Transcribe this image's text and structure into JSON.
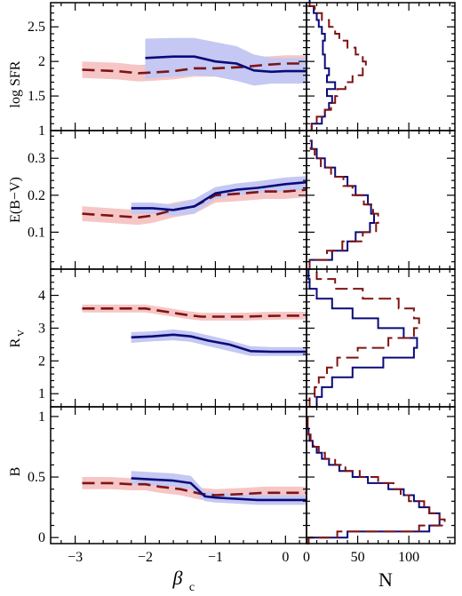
{
  "colors": {
    "red_line": "#7f1313",
    "red_band": "#f6c6c6",
    "blue_line": "#0a0a7a",
    "blue_band": "#c4c8f2",
    "frame": "#000000"
  },
  "chart_data": [
    {
      "type": "line",
      "panel": "SFR",
      "ylabel": "log SFR",
      "xlim": [
        -3.35,
        0.3
      ],
      "ylim": [
        1.0,
        2.85
      ],
      "yticks": [
        1,
        1.5,
        2,
        2.5
      ],
      "xticks": [
        -3,
        -2,
        -1,
        0
      ],
      "series": [
        {
          "color": "red",
          "style": "dashed",
          "x": [
            -2.9,
            -2.4,
            -2.1,
            -1.9,
            -1.6,
            -1.3,
            -1.0,
            -0.6,
            -0.3,
            0.0,
            0.3
          ],
          "y": [
            1.88,
            1.86,
            1.83,
            1.84,
            1.86,
            1.9,
            1.9,
            1.92,
            1.95,
            1.97,
            1.97
          ],
          "band": 0.12
        },
        {
          "color": "blue",
          "style": "solid",
          "x": [
            -2.0,
            -1.6,
            -1.3,
            -1.0,
            -0.7,
            -0.45,
            -0.2,
            0.0,
            0.3
          ],
          "y": [
            2.05,
            2.07,
            2.07,
            2.0,
            1.97,
            1.87,
            1.85,
            1.86,
            1.86
          ],
          "band_lo": [
            1.75,
            1.78,
            1.8,
            1.78,
            1.72,
            1.65,
            1.68,
            1.68,
            1.68
          ],
          "band_hi": [
            2.33,
            2.34,
            2.34,
            2.28,
            2.22,
            2.1,
            2.05,
            2.05,
            2.05
          ]
        }
      ]
    },
    {
      "type": "line",
      "panel": "EBV",
      "ylabel": "E(B−V)",
      "xlim": [
        -3.35,
        0.3
      ],
      "ylim": [
        0.0,
        0.375
      ],
      "yticks": [
        0.1,
        0.2,
        0.3
      ],
      "xticks": [
        -3,
        -2,
        -1,
        0
      ],
      "series": [
        {
          "color": "red",
          "style": "dashed",
          "x": [
            -2.9,
            -2.5,
            -2.1,
            -1.9,
            -1.6,
            -1.3,
            -1.0,
            -0.6,
            -0.3,
            0.0,
            0.3
          ],
          "y": [
            0.15,
            0.145,
            0.14,
            0.145,
            0.16,
            0.17,
            0.2,
            0.205,
            0.21,
            0.21,
            0.215
          ],
          "band": 0.02
        },
        {
          "color": "blue",
          "style": "solid",
          "x": [
            -2.2,
            -1.9,
            -1.6,
            -1.3,
            -1.0,
            -0.7,
            -0.4,
            0.0,
            0.3
          ],
          "y": [
            0.165,
            0.165,
            0.16,
            0.17,
            0.205,
            0.215,
            0.22,
            0.23,
            0.235
          ],
          "band_lo": [
            0.15,
            0.15,
            0.145,
            0.15,
            0.19,
            0.2,
            0.205,
            0.21,
            0.215
          ],
          "band_hi": [
            0.18,
            0.18,
            0.175,
            0.19,
            0.222,
            0.232,
            0.238,
            0.248,
            0.252
          ]
        }
      ]
    },
    {
      "type": "line",
      "panel": "RV",
      "ylabel": "R",
      "ylabel_sub": "V",
      "xlim": [
        -3.35,
        0.3
      ],
      "ylim": [
        0.6,
        4.8
      ],
      "yticks": [
        1,
        2,
        3,
        4
      ],
      "xticks": [
        -3,
        -2,
        -1,
        0
      ],
      "series": [
        {
          "color": "red",
          "style": "dashed",
          "x": [
            -2.9,
            -2.5,
            -2.2,
            -2.0,
            -1.7,
            -1.4,
            -1.2,
            -0.9,
            -0.6,
            -0.3,
            0.0,
            0.3
          ],
          "y": [
            3.6,
            3.6,
            3.6,
            3.6,
            3.5,
            3.4,
            3.35,
            3.35,
            3.35,
            3.37,
            3.38,
            3.38
          ],
          "band": 0.12
        },
        {
          "color": "blue",
          "style": "solid",
          "x": [
            -2.2,
            -1.9,
            -1.6,
            -1.35,
            -1.1,
            -0.8,
            -0.5,
            -0.2,
            0.0,
            0.3
          ],
          "y": [
            2.72,
            2.75,
            2.8,
            2.75,
            2.62,
            2.5,
            2.3,
            2.28,
            2.28,
            2.28
          ],
          "band_lo": [
            2.55,
            2.6,
            2.63,
            2.58,
            2.45,
            2.3,
            2.15,
            2.15,
            2.15,
            2.15
          ],
          "band_hi": [
            2.88,
            2.9,
            2.96,
            2.9,
            2.78,
            2.63,
            2.45,
            2.42,
            2.42,
            2.42
          ]
        }
      ]
    },
    {
      "type": "line",
      "panel": "B",
      "ylabel": "B",
      "xlim": [
        -3.35,
        0.3
      ],
      "ylim": [
        -0.05,
        1.08
      ],
      "yticks": [
        0,
        0.5,
        1
      ],
      "xticks": [
        -3,
        -2,
        -1,
        0
      ],
      "xticklabels": [
        "−3",
        "−2",
        "−1",
        "0"
      ],
      "xlabel": "β",
      "xlabel_sub": "c",
      "series": [
        {
          "color": "red",
          "style": "dashed",
          "x": [
            -2.9,
            -2.5,
            -2.2,
            -2.0,
            -1.8,
            -1.5,
            -1.2,
            -1.0,
            -0.6,
            -0.3,
            0.0,
            0.3
          ],
          "y": [
            0.45,
            0.45,
            0.44,
            0.44,
            0.42,
            0.4,
            0.36,
            0.35,
            0.36,
            0.37,
            0.37,
            0.37
          ],
          "band": 0.05
        },
        {
          "color": "blue",
          "style": "solid",
          "x": [
            -2.2,
            -1.9,
            -1.6,
            -1.35,
            -1.15,
            -1.0,
            -0.7,
            -0.4,
            -0.2,
            0.0,
            0.3
          ],
          "y": [
            0.49,
            0.48,
            0.47,
            0.45,
            0.34,
            0.33,
            0.32,
            0.31,
            0.31,
            0.31,
            0.31
          ],
          "band_lo": [
            0.44,
            0.43,
            0.42,
            0.4,
            0.3,
            0.29,
            0.28,
            0.27,
            0.27,
            0.27,
            0.27
          ],
          "band_hi": [
            0.55,
            0.54,
            0.53,
            0.51,
            0.38,
            0.37,
            0.36,
            0.35,
            0.35,
            0.35,
            0.35
          ]
        }
      ]
    },
    {
      "type": "histogram",
      "panel": "SFR_hist",
      "orientation": "horizontal",
      "xlim": [
        0,
        145
      ],
      "xticks": [
        0,
        50,
        100
      ],
      "xlabel": "N",
      "ylim": [
        1.0,
        2.85
      ],
      "series": [
        {
          "color": "blue",
          "style": "solid",
          "bins": [
            1.0,
            1.1,
            1.2,
            1.3,
            1.4,
            1.5,
            1.6,
            1.7,
            1.8,
            1.9,
            2.0,
            2.1,
            2.2,
            2.3,
            2.4,
            2.5,
            2.6,
            2.7,
            2.8,
            2.9
          ],
          "counts": [
            5,
            15,
            18,
            22,
            25,
            20,
            28,
            20,
            22,
            18,
            18,
            16,
            16,
            18,
            15,
            12,
            10,
            7,
            3
          ]
        },
        {
          "color": "red",
          "style": "dashed",
          "bins": [
            1.0,
            1.1,
            1.2,
            1.3,
            1.4,
            1.5,
            1.6,
            1.7,
            1.8,
            1.9,
            2.0,
            2.1,
            2.2,
            2.3,
            2.4,
            2.5,
            2.6,
            2.7,
            2.8,
            2.9
          ],
          "counts": [
            5,
            10,
            18,
            24,
            28,
            30,
            38,
            45,
            55,
            58,
            55,
            48,
            40,
            32,
            28,
            22,
            15,
            8,
            3
          ]
        }
      ]
    },
    {
      "type": "histogram",
      "panel": "EBV_hist",
      "orientation": "horizontal",
      "xlim": [
        0,
        145
      ],
      "ylim": [
        0.0,
        0.375
      ],
      "series": [
        {
          "color": "blue",
          "style": "solid",
          "bins": [
            0.0,
            0.025,
            0.05,
            0.075,
            0.1,
            0.125,
            0.15,
            0.175,
            0.2,
            0.225,
            0.25,
            0.275,
            0.3,
            0.325,
            0.35
          ],
          "counts": [
            3,
            25,
            40,
            48,
            62,
            66,
            63,
            60,
            48,
            40,
            28,
            18,
            10,
            5
          ]
        },
        {
          "color": "red",
          "style": "dashed",
          "bins": [
            0.0,
            0.025,
            0.05,
            0.075,
            0.1,
            0.125,
            0.15,
            0.175,
            0.2,
            0.225,
            0.25,
            0.275,
            0.3,
            0.325,
            0.35
          ],
          "counts": [
            3,
            20,
            35,
            55,
            68,
            70,
            65,
            56,
            45,
            36,
            24,
            14,
            8,
            4
          ]
        }
      ]
    },
    {
      "type": "histogram",
      "panel": "RV_hist",
      "orientation": "horizontal",
      "xlim": [
        0,
        145
      ],
      "ylim": [
        0.6,
        4.8
      ],
      "series": [
        {
          "color": "blue",
          "style": "solid",
          "bins": [
            0.6,
            0.9,
            1.2,
            1.5,
            1.8,
            2.1,
            2.4,
            2.7,
            3.0,
            3.3,
            3.6,
            3.9,
            4.2,
            4.5,
            4.8
          ],
          "counts": [
            10,
            15,
            25,
            45,
            75,
            105,
            108,
            95,
            70,
            45,
            25,
            10,
            3,
            2
          ]
        },
        {
          "color": "red",
          "style": "dashed",
          "bins": [
            0.6,
            0.9,
            1.2,
            1.5,
            1.8,
            2.1,
            2.4,
            2.7,
            3.0,
            3.3,
            3.6,
            3.9,
            4.2,
            4.5,
            4.8
          ],
          "counts": [
            3,
            8,
            12,
            20,
            30,
            50,
            80,
            105,
            110,
            105,
            90,
            55,
            28,
            10
          ]
        }
      ]
    },
    {
      "type": "histogram",
      "panel": "B_hist",
      "orientation": "horizontal",
      "xlim": [
        0,
        145
      ],
      "ylim": [
        -0.05,
        1.08
      ],
      "series": [
        {
          "color": "blue",
          "style": "solid",
          "bins": [
            -0.05,
            0.0,
            0.05,
            0.1,
            0.15,
            0.2,
            0.25,
            0.3,
            0.35,
            0.4,
            0.45,
            0.5,
            0.55,
            0.6,
            0.65,
            0.7,
            0.75,
            0.8,
            0.85,
            0.9,
            0.95,
            1.0
          ],
          "counts": [
            2,
            40,
            120,
            130,
            130,
            120,
            110,
            105,
            95,
            80,
            60,
            45,
            32,
            22,
            15,
            10,
            6,
            3,
            2,
            1,
            1
          ]
        },
        {
          "color": "red",
          "style": "dashed",
          "bins": [
            -0.05,
            0.0,
            0.05,
            0.1,
            0.15,
            0.2,
            0.25,
            0.3,
            0.35,
            0.4,
            0.45,
            0.5,
            0.55,
            0.6,
            0.65,
            0.7,
            0.75,
            0.8,
            0.85,
            0.9,
            0.95,
            1.0
          ],
          "counts": [
            2,
            30,
            110,
            135,
            130,
            120,
            115,
            100,
            92,
            85,
            70,
            52,
            38,
            28,
            18,
            12,
            7,
            4,
            2,
            1,
            1
          ]
        }
      ]
    }
  ]
}
